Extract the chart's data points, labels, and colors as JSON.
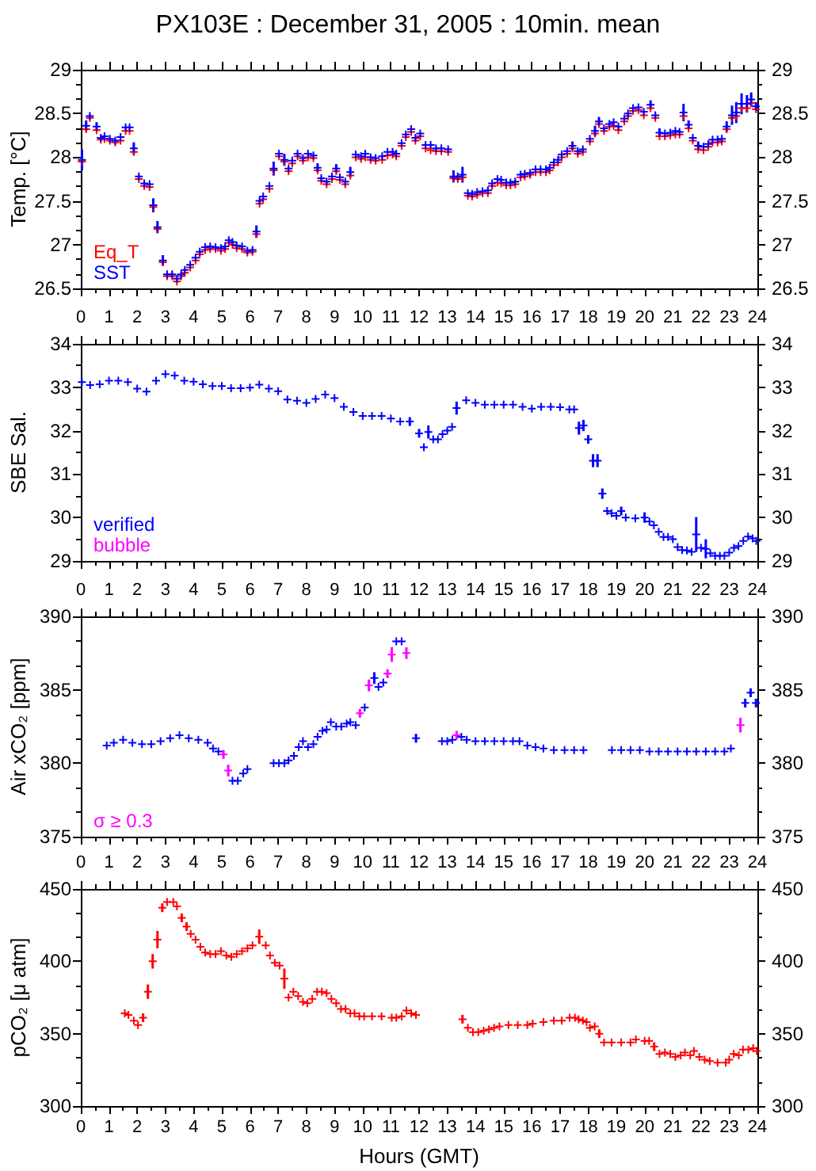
{
  "chart_data": [
    {
      "type": "scatter",
      "title": "PX103E : December 31, 2005 : 10min. mean",
      "ylabel": "Temp. [°C]",
      "marker": "cross",
      "legend": "bottom left",
      "tick_labels": "y",
      "xlim": [
        0,
        24
      ],
      "xticks": [
        0,
        1,
        2,
        3,
        4,
        5,
        6,
        7,
        8,
        9,
        10,
        11,
        12,
        13,
        14,
        15,
        16,
        17,
        18,
        19,
        20,
        21,
        22,
        23,
        24
      ],
      "ylim": [
        26.5,
        29
      ],
      "yticks": [
        26.5,
        27,
        27.5,
        28,
        28.5,
        29
      ],
      "y2lim": [
        26.5,
        29
      ],
      "y2ticks": [
        26.5,
        27,
        27.5,
        28,
        28.5,
        29
      ],
      "x": [
        0.04,
        0.19,
        0.32,
        0.56,
        0.71,
        0.84,
        1.03,
        1.22,
        1.41,
        1.59,
        1.73,
        1.88,
        2.06,
        2.25,
        2.44,
        2.57,
        2.72,
        2.91,
        3.06,
        3.24,
        3.41,
        3.56,
        3.69,
        3.88,
        4.07,
        4.22,
        4.41,
        4.59,
        4.78,
        4.97,
        5.12,
        5.25,
        5.38,
        5.53,
        5.72,
        5.91,
        6.09,
        6.23,
        6.34,
        6.47,
        6.69,
        6.84,
        7.03,
        7.22,
        7.37,
        7.5,
        7.69,
        7.88,
        8.06,
        8.25,
        8.4,
        8.53,
        8.72,
        8.91,
        9.06,
        9.19,
        9.38,
        9.56,
        9.75,
        9.94,
        10.09,
        10.28,
        10.46,
        10.69,
        10.88,
        11.06,
        11.19,
        11.38,
        11.53,
        11.72,
        11.87,
        12.04,
        12.23,
        12.41,
        12.6,
        12.79,
        13.03,
        13.22,
        13.37,
        13.54,
        13.73,
        13.88,
        14.06,
        14.25,
        14.44,
        14.59,
        14.78,
        14.91,
        15.09,
        15.24,
        15.41,
        15.6,
        15.75,
        15.94,
        16.13,
        16.31,
        16.5,
        16.63,
        16.78,
        16.93,
        17.06,
        17.25,
        17.44,
        17.63,
        17.81,
        18.06,
        18.24,
        18.38,
        18.56,
        18.75,
        18.9,
        19.07,
        19.28,
        19.41,
        19.59,
        19.78,
        19.97,
        20.21,
        20.38,
        20.53,
        20.72,
        20.91,
        21.09,
        21.24,
        21.38,
        21.56,
        21.71,
        21.9,
        22.09,
        22.26,
        22.41,
        22.59,
        22.74,
        22.91,
        23.1,
        23.25,
        23.44,
        23.63,
        23.78,
        23.95
      ],
      "series": [
        {
          "name": "Eq_T",
          "color": "#ff0000",
          "values": [
            27.95,
            28.32,
            28.45,
            28.31,
            28.2,
            28.21,
            28.19,
            28.17,
            28.19,
            28.3,
            28.3,
            28.06,
            27.75,
            27.67,
            27.66,
            27.43,
            27.18,
            26.8,
            26.64,
            26.64,
            26.58,
            26.64,
            26.68,
            26.74,
            26.82,
            26.89,
            26.94,
            26.95,
            26.95,
            26.93,
            26.95,
            27.02,
            27.0,
            26.96,
            26.95,
            26.91,
            26.92,
            27.12,
            27.47,
            27.52,
            27.64,
            27.85,
            28.01,
            27.95,
            27.84,
            27.93,
            28.01,
            27.96,
            28.0,
            27.99,
            27.85,
            27.73,
            27.69,
            27.75,
            27.84,
            27.74,
            27.69,
            27.79,
            28.0,
            27.98,
            28.0,
            27.97,
            27.96,
            27.97,
            28.02,
            28.03,
            28.01,
            28.13,
            28.23,
            28.29,
            28.19,
            28.24,
            28.1,
            28.08,
            28.07,
            28.07,
            28.06,
            27.76,
            27.75,
            27.77,
            27.56,
            27.55,
            27.57,
            27.59,
            27.59,
            27.67,
            27.71,
            27.7,
            27.68,
            27.68,
            27.69,
            27.77,
            27.78,
            27.8,
            27.83,
            27.83,
            27.83,
            27.85,
            27.91,
            27.94,
            28.0,
            28.04,
            28.1,
            28.04,
            28.06,
            28.18,
            28.27,
            28.38,
            28.3,
            28.35,
            28.36,
            28.31,
            28.41,
            28.47,
            28.53,
            28.54,
            28.48,
            28.56,
            28.45,
            28.24,
            28.24,
            28.25,
            28.26,
            28.26,
            28.47,
            28.33,
            28.19,
            28.09,
            28.08,
            28.12,
            28.17,
            28.17,
            28.18,
            28.32,
            28.45,
            28.47,
            28.56,
            28.56,
            28.62,
            28.55
          ]
        },
        {
          "name": "SST",
          "color": "#0000ff",
          "values": [
            27.97,
            28.36,
            28.47,
            28.35,
            28.22,
            28.24,
            28.21,
            28.19,
            28.23,
            28.34,
            28.34,
            28.1,
            27.78,
            27.7,
            27.69,
            27.45,
            27.2,
            26.82,
            26.66,
            26.66,
            26.61,
            26.66,
            26.71,
            26.77,
            26.85,
            26.92,
            26.97,
            26.98,
            26.97,
            26.96,
            26.98,
            27.05,
            27.03,
            26.99,
            26.98,
            26.93,
            26.94,
            27.15,
            27.5,
            27.55,
            27.67,
            27.87,
            28.04,
            27.97,
            27.87,
            27.96,
            28.04,
            27.99,
            28.04,
            28.02,
            27.88,
            27.76,
            27.72,
            27.78,
            27.87,
            27.77,
            27.72,
            27.83,
            28.03,
            28.01,
            28.04,
            28.0,
            27.99,
            28.01,
            28.06,
            28.06,
            28.04,
            28.16,
            28.26,
            28.32,
            28.22,
            28.27,
            28.14,
            28.14,
            28.1,
            28.1,
            28.09,
            27.78,
            27.78,
            27.8,
            27.59,
            27.58,
            27.6,
            27.61,
            27.62,
            27.7,
            27.75,
            27.74,
            27.71,
            27.71,
            27.72,
            27.8,
            27.81,
            27.82,
            27.86,
            27.86,
            27.86,
            27.88,
            27.94,
            27.97,
            28.03,
            28.07,
            28.13,
            28.07,
            28.09,
            28.21,
            28.3,
            28.41,
            28.33,
            28.38,
            28.4,
            28.35,
            28.44,
            28.5,
            28.56,
            28.57,
            28.52,
            28.6,
            28.48,
            28.28,
            28.27,
            28.28,
            28.3,
            28.29,
            28.51,
            28.37,
            28.22,
            28.13,
            28.12,
            28.15,
            28.2,
            28.2,
            28.21,
            28.35,
            28.48,
            28.51,
            28.61,
            28.61,
            28.66,
            28.58
          ],
          "errors": [
            0.12,
            0.06,
            null,
            0.05,
            null,
            null,
            null,
            null,
            null,
            null,
            null,
            0.07,
            null,
            null,
            null,
            0.08,
            0.07,
            0.06,
            null,
            null,
            null,
            null,
            null,
            null,
            null,
            null,
            null,
            null,
            null,
            null,
            null,
            null,
            null,
            null,
            null,
            null,
            null,
            0.07,
            null,
            null,
            null,
            0.08,
            null,
            0.07,
            null,
            null,
            null,
            null,
            null,
            null,
            0.05,
            null,
            null,
            null,
            0.05,
            null,
            null,
            0.06,
            null,
            null,
            null,
            null,
            null,
            null,
            null,
            null,
            null,
            null,
            null,
            null,
            null,
            null,
            null,
            null,
            null,
            null,
            null,
            0.07,
            null,
            0.09,
            null,
            null,
            null,
            null,
            null,
            null,
            null,
            null,
            null,
            null,
            null,
            null,
            null,
            null,
            null,
            null,
            null,
            null,
            null,
            null,
            null,
            null,
            0.05,
            null,
            null,
            null,
            0.06,
            0.05,
            null,
            null,
            null,
            null,
            null,
            null,
            null,
            null,
            null,
            0.05,
            null,
            0.05,
            null,
            null,
            null,
            null,
            0.1,
            0.05,
            null,
            0.05,
            null,
            null,
            null,
            null,
            null,
            0.06,
            0.11,
            0.12,
            0.12,
            0.1,
            0.08,
            0.05
          ]
        }
      ]
    },
    {
      "type": "scatter",
      "ylabel": "SBE Sal.",
      "marker": "cross",
      "legend": "bottom left",
      "tick_labels": "y",
      "xlim": [
        0,
        24
      ],
      "xticks": [
        0,
        1,
        2,
        3,
        4,
        5,
        6,
        7,
        8,
        9,
        10,
        11,
        12,
        13,
        14,
        15,
        16,
        17,
        18,
        19,
        20,
        21,
        22,
        23,
        24
      ],
      "x2lim": [
        0,
        24
      ],
      "x2ticks": [
        0,
        1,
        2,
        3,
        4,
        5,
        6,
        7,
        8,
        9,
        10,
        11,
        12,
        13,
        14,
        15,
        16,
        17,
        18,
        19,
        20,
        21,
        22,
        23,
        24
      ],
      "ylim": [
        29,
        34
      ],
      "yticks": [
        29,
        30,
        31,
        32,
        33,
        34
      ],
      "y2lim": [
        29,
        34
      ],
      "y2ticks": [
        29,
        30,
        31,
        32,
        33,
        34
      ],
      "series": [
        {
          "name": "verified",
          "color": "#0000ff",
          "x": [
            0.04,
            0.33,
            0.67,
            1.0,
            1.33,
            1.67,
            2.0,
            2.33,
            2.67,
            3.0,
            3.33,
            3.67,
            4.0,
            4.33,
            4.67,
            5.0,
            5.33,
            5.67,
            6.0,
            6.33,
            6.67,
            7.0,
            7.33,
            7.67,
            8.0,
            8.33,
            8.67,
            9.0,
            9.33,
            9.67,
            10.0,
            10.33,
            10.67,
            11.0,
            11.33,
            11.67,
            12.0,
            12.17,
            12.33,
            12.5,
            12.67,
            12.83,
            13.0,
            13.17,
            13.33,
            13.67,
            14.0,
            14.33,
            14.67,
            15.0,
            15.33,
            15.67,
            16.0,
            16.33,
            16.67,
            17.0,
            17.33,
            17.5,
            17.67,
            17.83,
            18.0,
            18.17,
            18.33,
            18.5,
            18.67,
            18.83,
            19.0,
            19.17,
            19.33,
            19.67,
            20.0,
            20.17,
            20.33,
            20.5,
            20.67,
            20.83,
            21.0,
            21.17,
            21.33,
            21.5,
            21.67,
            21.83,
            22.0,
            22.17,
            22.33,
            22.5,
            22.67,
            22.83,
            23.0,
            23.17,
            23.33,
            23.5,
            23.67,
            23.83,
            23.96
          ],
          "values": [
            33.12,
            33.05,
            33.07,
            33.15,
            33.15,
            33.12,
            32.97,
            32.9,
            33.15,
            33.3,
            33.27,
            33.15,
            33.13,
            33.07,
            33.03,
            33.03,
            32.98,
            32.98,
            32.99,
            33.06,
            32.97,
            32.91,
            32.72,
            32.69,
            32.64,
            32.73,
            32.83,
            32.75,
            32.55,
            32.43,
            32.34,
            32.34,
            32.34,
            32.28,
            32.21,
            32.21,
            31.94,
            31.62,
            31.97,
            31.8,
            31.8,
            31.92,
            32.0,
            32.09,
            32.52,
            32.7,
            32.64,
            32.6,
            32.6,
            32.6,
            32.6,
            32.55,
            32.51,
            32.55,
            32.55,
            32.54,
            32.49,
            32.49,
            32.06,
            32.12,
            31.8,
            31.31,
            31.31,
            30.55,
            30.15,
            30.1,
            30.04,
            30.15,
            30.0,
            29.98,
            30.0,
            29.91,
            29.82,
            29.67,
            29.55,
            29.55,
            29.5,
            29.32,
            29.25,
            29.24,
            29.21,
            29.61,
            29.3,
            29.28,
            29.18,
            29.12,
            29.12,
            29.12,
            29.19,
            29.3,
            29.34,
            29.46,
            29.56,
            29.52,
            29.46
          ],
          "errors": [
            null,
            null,
            null,
            null,
            null,
            null,
            null,
            null,
            null,
            null,
            null,
            null,
            null,
            null,
            null,
            null,
            null,
            null,
            null,
            null,
            null,
            null,
            null,
            null,
            null,
            null,
            null,
            null,
            null,
            null,
            null,
            null,
            null,
            null,
            null,
            0.1,
            0.1,
            null,
            0.15,
            null,
            null,
            null,
            null,
            null,
            0.15,
            null,
            null,
            null,
            null,
            null,
            null,
            null,
            null,
            null,
            null,
            null,
            null,
            null,
            0.15,
            0.13,
            0.1,
            0.15,
            0.15,
            0.12,
            null,
            null,
            null,
            0.1,
            null,
            null,
            0.12,
            null,
            null,
            null,
            null,
            null,
            null,
            null,
            null,
            null,
            null,
            0.4,
            null,
            0.22,
            null,
            null,
            null,
            null,
            null,
            null,
            null,
            null,
            null,
            null,
            null
          ]
        },
        {
          "name": "bubble",
          "color": "#ff00ff"
        }
      ]
    },
    {
      "type": "scatter",
      "ylabel": "Air xCO₂ [ppm]",
      "marker": "cross",
      "legend": "bottom left",
      "tick_labels": "y",
      "xlim": [
        0,
        24
      ],
      "xticks": [
        0,
        1,
        2,
        3,
        4,
        5,
        6,
        7,
        8,
        9,
        10,
        11,
        12,
        13,
        14,
        15,
        16,
        17,
        18,
        19,
        20,
        21,
        22,
        23,
        24
      ],
      "x2lim": [
        0,
        24
      ],
      "x2ticks": [
        0,
        1,
        2,
        3,
        4,
        5,
        6,
        7,
        8,
        9,
        10,
        11,
        12,
        13,
        14,
        15,
        16,
        17,
        18,
        19,
        20,
        21,
        22,
        23,
        24
      ],
      "ylim": [
        375,
        390
      ],
      "yticks": [
        375,
        380,
        385,
        390
      ],
      "y2lim": [
        375,
        390
      ],
      "y2ticks": [
        375,
        380,
        385,
        390
      ],
      "series": [
        {
          "color": "#0000ff",
          "x": [
            0.92,
            1.17,
            1.5,
            1.83,
            2.17,
            2.5,
            2.83,
            3.17,
            3.5,
            3.83,
            4.17,
            4.5,
            4.69,
            4.88,
            5.38,
            5.57,
            5.76,
            5.91,
            6.84,
            7.03,
            7.22,
            7.37,
            7.56,
            7.73,
            7.88,
            8.06,
            8.25,
            8.4,
            8.57,
            8.72,
            8.87,
            9.06,
            9.24,
            9.43,
            9.56,
            9.75,
            10.07,
            10.41,
            10.56,
            10.73,
            11.19,
            11.38,
            11.89,
            12.81,
            13.0,
            13.18,
            13.5,
            13.69,
            14.0,
            14.33,
            14.67,
            15.0,
            15.33,
            15.56,
            15.84,
            16.13,
            16.41,
            16.78,
            17.16,
            17.5,
            17.83,
            18.84,
            19.17,
            19.5,
            19.83,
            20.17,
            20.5,
            20.83,
            21.17,
            21.5,
            21.83,
            22.17,
            22.5,
            22.83,
            23.06,
            23.57,
            23.76,
            23.95
          ],
          "values": [
            381.2,
            381.4,
            381.6,
            381.4,
            381.3,
            381.3,
            381.5,
            381.7,
            381.9,
            381.7,
            381.6,
            381.4,
            381.0,
            380.8,
            378.8,
            378.8,
            379.3,
            379.6,
            380.0,
            380.0,
            380.0,
            380.2,
            380.5,
            381.1,
            381.5,
            381.1,
            381.3,
            381.8,
            382.2,
            382.3,
            382.8,
            382.5,
            382.5,
            382.7,
            382.8,
            382.6,
            383.8,
            385.8,
            385.2,
            385.5,
            388.3,
            388.3,
            381.7,
            381.5,
            381.5,
            381.6,
            381.8,
            381.6,
            381.5,
            381.5,
            381.5,
            381.5,
            381.5,
            381.5,
            381.2,
            381.1,
            381.0,
            380.9,
            380.9,
            380.9,
            380.9,
            380.9,
            380.9,
            380.9,
            380.9,
            380.8,
            380.8,
            380.8,
            380.8,
            380.8,
            380.8,
            380.8,
            380.8,
            380.8,
            381.0,
            384.1,
            384.8,
            384.1
          ],
          "errors": [
            null,
            null,
            null,
            null,
            null,
            null,
            null,
            null,
            null,
            null,
            null,
            null,
            null,
            null,
            null,
            null,
            null,
            null,
            null,
            null,
            null,
            null,
            null,
            null,
            null,
            null,
            null,
            null,
            null,
            null,
            null,
            null,
            null,
            null,
            null,
            null,
            null,
            0.4,
            null,
            null,
            null,
            null,
            0.3,
            null,
            null,
            null,
            null,
            null,
            null,
            null,
            null,
            null,
            null,
            null,
            null,
            null,
            null,
            null,
            null,
            null,
            null,
            null,
            null,
            null,
            null,
            null,
            null,
            null,
            null,
            null,
            null,
            null,
            null,
            null,
            null,
            0.3,
            0.3,
            0.3
          ]
        },
        {
          "name": "σ ≥ 0.3",
          "color": "#ff00ff",
          "x": [
            5.06,
            5.23,
            9.9,
            10.22,
            10.88,
            11.03,
            11.55,
            13.33,
            23.4
          ],
          "values": [
            380.6,
            379.5,
            383.4,
            385.3,
            386.1,
            387.4,
            387.5,
            381.9,
            382.6
          ],
          "errors": [
            0.3,
            0.4,
            0.3,
            0.4,
            0.3,
            0.5,
            0.4,
            0.3,
            0.5
          ]
        }
      ]
    },
    {
      "type": "scatter",
      "ylabel": "pCO₂ [μ atm]",
      "xlabel": "Hours (GMT)",
      "marker": "cross",
      "xlim": [
        0,
        24
      ],
      "xticks": [
        0,
        1,
        2,
        3,
        4,
        5,
        6,
        7,
        8,
        9,
        10,
        11,
        12,
        13,
        14,
        15,
        16,
        17,
        18,
        19,
        20,
        21,
        22,
        23,
        24
      ],
      "x2lim": [
        0,
        24
      ],
      "x2ticks": [
        0,
        1,
        2,
        3,
        4,
        5,
        6,
        7,
        8,
        9,
        10,
        11,
        12,
        13,
        14,
        15,
        16,
        17,
        18,
        19,
        20,
        21,
        22,
        23,
        24
      ],
      "ylim": [
        300,
        450
      ],
      "yticks": [
        300,
        350,
        400,
        450
      ],
      "y2lim": [
        300,
        450
      ],
      "y2ticks": [
        300,
        350,
        400,
        450
      ],
      "series": [
        {
          "color": "#ff0000",
          "x": [
            1.56,
            1.69,
            1.88,
            2.03,
            2.21,
            2.38,
            2.55,
            2.72,
            2.89,
            3.06,
            3.28,
            3.41,
            3.58,
            3.75,
            3.9,
            4.07,
            4.24,
            4.41,
            4.59,
            4.78,
            4.97,
            5.16,
            5.34,
            5.53,
            5.72,
            5.91,
            6.09,
            6.33,
            6.56,
            6.71,
            6.88,
            7.05,
            7.22,
            7.37,
            7.54,
            7.71,
            7.88,
            8.04,
            8.21,
            8.38,
            8.55,
            8.72,
            8.89,
            9.06,
            9.23,
            9.39,
            9.56,
            9.71,
            9.88,
            10.05,
            10.33,
            10.67,
            11.03,
            11.19,
            11.38,
            11.55,
            11.72,
            11.89,
            13.54,
            13.73,
            13.91,
            14.1,
            14.29,
            14.48,
            14.66,
            14.85,
            15.17,
            15.5,
            15.84,
            16.03,
            16.41,
            16.78,
            17.06,
            17.34,
            17.53,
            17.66,
            17.81,
            17.94,
            18.06,
            18.23,
            18.39,
            18.56,
            18.83,
            19.17,
            19.5,
            19.69,
            20.0,
            20.16,
            20.34,
            20.53,
            20.72,
            20.91,
            21.09,
            21.28,
            21.43,
            21.62,
            21.75,
            21.94,
            22.13,
            22.31,
            22.59,
            22.88,
            23.0,
            23.16,
            23.34,
            23.49,
            23.68,
            23.85,
            23.98
          ],
          "values": [
            364,
            363,
            359,
            356,
            361,
            379,
            400,
            415,
            437,
            441,
            441,
            438,
            430,
            424,
            419,
            415,
            410,
            406,
            405,
            405,
            407,
            404,
            403,
            405,
            407,
            409,
            411,
            417,
            411,
            404,
            399,
            397,
            388,
            375,
            379,
            376,
            372,
            371,
            374,
            379,
            379,
            378,
            374,
            371,
            367,
            367,
            364,
            364,
            362,
            362,
            362,
            362,
            361,
            361,
            362,
            366,
            364,
            363,
            360,
            354,
            351,
            351,
            352,
            353,
            354,
            355,
            356,
            356,
            356,
            357,
            358,
            359,
            359,
            361,
            361,
            360,
            359,
            358,
            354,
            355,
            350,
            344,
            344,
            344,
            344,
            346,
            345,
            345,
            341,
            336,
            337,
            336,
            334,
            335,
            337,
            335,
            338,
            334,
            332,
            331,
            330,
            330,
            332,
            336,
            335,
            339,
            339,
            340,
            338
          ],
          "errors": [
            null,
            null,
            null,
            null,
            3,
            5,
            5,
            6,
            3,
            null,
            null,
            null,
            3,
            3,
            null,
            null,
            null,
            null,
            null,
            null,
            null,
            null,
            null,
            null,
            null,
            null,
            null,
            5,
            null,
            null,
            null,
            null,
            7,
            null,
            null,
            null,
            null,
            null,
            null,
            null,
            null,
            null,
            null,
            null,
            null,
            null,
            null,
            null,
            null,
            null,
            null,
            null,
            null,
            null,
            null,
            null,
            null,
            null,
            3,
            null,
            null,
            null,
            null,
            null,
            null,
            null,
            null,
            null,
            null,
            null,
            null,
            null,
            null,
            null,
            null,
            null,
            null,
            null,
            null,
            null,
            3,
            null,
            null,
            null,
            null,
            null,
            null,
            null,
            3,
            null,
            null,
            null,
            null,
            null,
            null,
            null,
            null,
            null,
            null,
            null,
            null,
            null,
            null,
            null,
            null,
            null,
            null,
            null,
            null
          ]
        }
      ]
    }
  ]
}
